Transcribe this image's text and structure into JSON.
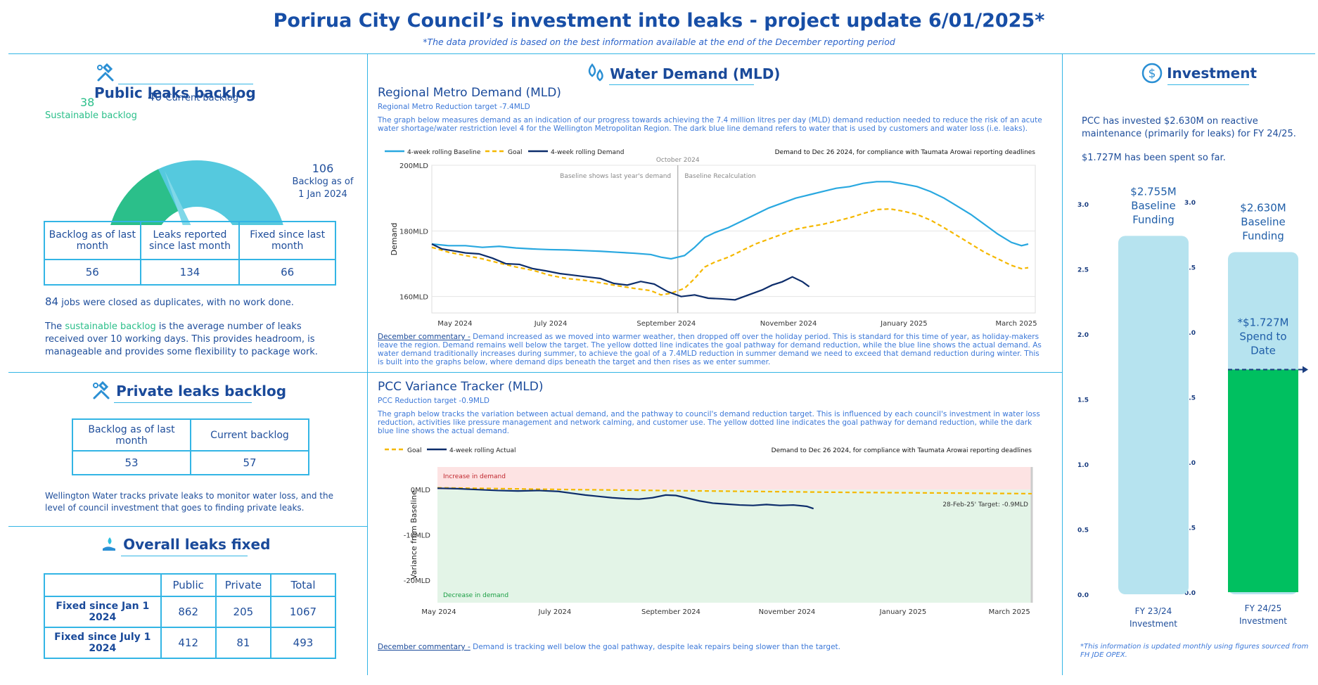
{
  "header": {
    "title": "Porirua City Council’s investment into leaks - project update 6/01/2025*",
    "subtitle": "*The data provided is based on the best information available at the end of the December reporting period"
  },
  "public_backlog": {
    "title": "Public leaks backlog",
    "gauge_sustainable_value": "38",
    "gauge_sustainable_label": "Sustainable backlog",
    "gauge_current_value": "40",
    "gauge_current_label": "Current backlog",
    "gauge_max_value": "106",
    "gauge_max_label_1": "Backlog as of",
    "gauge_max_label_2": "1 Jan 2024",
    "gauge_values": {
      "sustainable": 38,
      "current": 40,
      "max": 106
    },
    "table_headers": [
      "Backlog as of last month",
      "Leaks reported since last month",
      "Fixed since last month"
    ],
    "table_values": [
      "56",
      "134",
      "66"
    ],
    "duplicates_count": "84",
    "duplicates_text": "jobs were closed as duplicates, with no work done.",
    "note_prefix": "The",
    "note_highlight": "sustainable backlog",
    "note_rest": "is the average number of leaks received over 10 working days. This provides headroom, is manageable and provides some flexibility to package work."
  },
  "private_backlog": {
    "title": "Private leaks backlog",
    "table_headers": [
      "Backlog as of last month",
      "Current backlog"
    ],
    "table_values": [
      "53",
      "57"
    ],
    "note": "Wellington Water tracks private leaks to monitor water loss, and the level of council investment that goes to finding private leaks."
  },
  "overall_fixed": {
    "title": "Overall leaks fixed",
    "headers": [
      "Public",
      "Private",
      "Total"
    ],
    "rows": [
      {
        "label": "Fixed since Jan 1 2024",
        "values": [
          "862",
          "205",
          "1067"
        ]
      },
      {
        "label": "Fixed since July 1 2024",
        "values": [
          "412",
          "81",
          "493"
        ]
      }
    ]
  },
  "water_demand": {
    "title": "Water Demand (MLD)",
    "regional_title": "Regional Metro Demand (MLD)",
    "regional_sub": "Regional Metro Reduction target -7.4MLD",
    "regional_desc": "The graph below measures demand as an indication of our progress towards achieving the 7.4 million litres per day (MLD) demand reduction needed to reduce the risk of an acute water shortage/water restriction level 4 for the Wellington Metropolitan Region. The dark blue line demand refers to water that is used by customers and water loss (i.e. leaks).",
    "commentary_label": "December commentary -",
    "commentary_text": "Demand increased as we moved into warmer weather, then dropped off over the holiday period. This is standard for this time of year, as holiday-makers leave the region. Demand remains well below the target. The yellow dotted line indicates the goal pathway for demand reduction, while the blue line shows the actual demand. As water demand traditionally increases during summer, to achieve the goal of a 7.4MLD reduction in summer demand we need to exceed that demand reduction during winter. This is built into the graphs below, where demand dips beneath the target and then rises as we enter summer.",
    "pcc_title": "PCC Variance Tracker (MLD)",
    "pcc_sub": "PCC Reduction target -0.9MLD",
    "pcc_desc": "The graph below tracks the variation between actual demand, and the pathway to council's demand reduction target. This is influenced by each council's investment in water loss reduction, activities like pressure management and network calming, and customer use. The yellow dotted line indicates the goal pathway for demand reduction, while the dark blue line shows the actual demand.",
    "pcc_commentary_label": "December commentary -",
    "pcc_commentary_text": "Demand is tracking well below the goal pathway, despite leak repairs being slower than the target."
  },
  "investment": {
    "title": "Investment",
    "text1": "PCC has invested $2.630M on reactive maintenance (primarily for leaks) for FY 24/25.",
    "text2": "$1.727M has been spent so far.",
    "footnote": "*This information is updated monthly using figures sourced from FH JDE OPEX."
  },
  "colors": {
    "brand_blue": "#174ea6",
    "accent": "#33b5e5",
    "baseline_line": "#29a8e0",
    "goal_line": "#f5b800",
    "demand_line": "#0d2d6b",
    "light_bar": "#b6e3ef",
    "green_bar": "#00c060",
    "sustainable_green": "#2bbf8a",
    "gauge_blue": "#55c9de"
  },
  "icons": [
    "wrench-pipe-icon",
    "water-drops-icon",
    "dollar-circle-icon",
    "wrench-pipe-icon",
    "hand-water-icon"
  ],
  "chart_data": [
    {
      "type": "line",
      "title": "Regional Metro Demand (MLD)",
      "annotation_top": "Demand to Dec 26 2024, for compliance with Taumata Arowai reporting deadlines",
      "annotation_october": "October 2024",
      "annotation_left": "Baseline shows last year's demand",
      "annotation_right": "Baseline Recalculation",
      "ylabel": "Demand",
      "xlabel": "",
      "x_ticks": [
        "May 2024",
        "July 2024",
        "September 2024",
        "November 2024",
        "January 2025",
        "March 2025"
      ],
      "y_ticks": [
        "160MLD",
        "180MLD",
        "200MLD"
      ],
      "ylim": [
        155,
        200
      ],
      "legend": [
        "4-week rolling Baseline",
        "Goal",
        "4-week rolling Demand"
      ],
      "series": [
        {
          "name": "4-week rolling Baseline",
          "color": "#29a8e0",
          "dash": "none",
          "points": [
            [
              0,
              176
            ],
            [
              5,
              175.5
            ],
            [
              10,
              175.5
            ],
            [
              15,
              175
            ],
            [
              20,
              175.3
            ],
            [
              25,
              174.8
            ],
            [
              30,
              174.5
            ],
            [
              35,
              174.3
            ],
            [
              40,
              174.2
            ],
            [
              45,
              174
            ],
            [
              50,
              173.8
            ],
            [
              55,
              173.5
            ],
            [
              60,
              173.2
            ],
            [
              65,
              172.8
            ],
            [
              68,
              172
            ],
            [
              71,
              171.5
            ],
            [
              75,
              172.5
            ],
            [
              78,
              175
            ],
            [
              81,
              178
            ],
            [
              84,
              179.5
            ],
            [
              88,
              181
            ],
            [
              92,
              183
            ],
            [
              96,
              185
            ],
            [
              100,
              187
            ],
            [
              104,
              188.5
            ],
            [
              108,
              190
            ],
            [
              112,
              191
            ],
            [
              116,
              192
            ],
            [
              120,
              193
            ],
            [
              124,
              193.5
            ],
            [
              128,
              194.5
            ],
            [
              132,
              195
            ],
            [
              136,
              195
            ],
            [
              140,
              194.3
            ],
            [
              144,
              193.5
            ],
            [
              148,
              192
            ],
            [
              152,
              190
            ],
            [
              156,
              187.5
            ],
            [
              160,
              185
            ],
            [
              164,
              182
            ],
            [
              168,
              179
            ],
            [
              172,
              176.5
            ],
            [
              175,
              175.5
            ],
            [
              177,
              176
            ]
          ]
        },
        {
          "name": "Goal",
          "color": "#f5b800",
          "dash": "6,4",
          "points": [
            [
              0,
              175
            ],
            [
              5,
              173.5
            ],
            [
              10,
              172.5
            ],
            [
              15,
              171.5
            ],
            [
              20,
              170.2
            ],
            [
              25,
              169
            ],
            [
              30,
              168
            ],
            [
              35,
              166.5
            ],
            [
              40,
              165.5
            ],
            [
              45,
              165
            ],
            [
              50,
              164.2
            ],
            [
              55,
              163.3
            ],
            [
              60,
              162.5
            ],
            [
              65,
              161.8
            ],
            [
              68,
              160.5
            ],
            [
              71,
              161
            ],
            [
              75,
              162.5
            ],
            [
              78,
              165.5
            ],
            [
              81,
              169
            ],
            [
              84,
              170.5
            ],
            [
              88,
              172
            ],
            [
              92,
              174
            ],
            [
              96,
              176
            ],
            [
              100,
              177.5
            ],
            [
              104,
              179
            ],
            [
              108,
              180.5
            ],
            [
              112,
              181.3
            ],
            [
              116,
              182
            ],
            [
              120,
              183
            ],
            [
              124,
              184
            ],
            [
              128,
              185.3
            ],
            [
              132,
              186.5
            ],
            [
              136,
              186.7
            ],
            [
              140,
              186
            ],
            [
              144,
              185
            ],
            [
              148,
              183.3
            ],
            [
              152,
              181
            ],
            [
              156,
              178.5
            ],
            [
              160,
              176
            ],
            [
              164,
              173.5
            ],
            [
              168,
              171.5
            ],
            [
              172,
              169.5
            ],
            [
              175,
              168.5
            ],
            [
              177,
              168.8
            ]
          ]
        },
        {
          "name": "4-week rolling Demand",
          "color": "#0d2d6b",
          "dash": "none",
          "points": [
            [
              0,
              176
            ],
            [
              3,
              174.5
            ],
            [
              6,
              174
            ],
            [
              10,
              173.3
            ],
            [
              14,
              173
            ],
            [
              18,
              171.7
            ],
            [
              22,
              170
            ],
            [
              26,
              169.8
            ],
            [
              30,
              168.5
            ],
            [
              34,
              167.8
            ],
            [
              38,
              167
            ],
            [
              42,
              166.5
            ],
            [
              46,
              166
            ],
            [
              50,
              165.5
            ],
            [
              54,
              164
            ],
            [
              58,
              163.5
            ],
            [
              62,
              164.6
            ],
            [
              66,
              163.8
            ],
            [
              70,
              161.5
            ],
            [
              74,
              160
            ],
            [
              78,
              160.5
            ],
            [
              82,
              159.5
            ],
            [
              86,
              159.3
            ],
            [
              90,
              159
            ],
            [
              94,
              160.5
            ],
            [
              98,
              162
            ],
            [
              101,
              163.5
            ],
            [
              104,
              164.5
            ],
            [
              107,
              166
            ],
            [
              110,
              164.5
            ],
            [
              112,
              163
            ]
          ]
        }
      ]
    },
    {
      "type": "line",
      "title": "PCC Variance Tracker (MLD)",
      "annotation_top": "Demand to Dec 26 2024, for compliance with Taumata Arowai reporting deadlines",
      "annotation_target": "28-Feb-25' Target: -0.9MLD",
      "band_upper_label": "Increase in demand",
      "band_lower_label": "Decrease in demand",
      "ylabel": "Variance from Baseline",
      "xlabel": "",
      "x_ticks": [
        "May 2024",
        "July 2024",
        "September 2024",
        "November 2024",
        "January 2025",
        "March 2025"
      ],
      "y_ticks": [
        "0MLD",
        "-10MLD",
        "-20MLD"
      ],
      "ylim": [
        -25,
        5
      ],
      "legend": [
        "Goal",
        "4-week rolling Actual"
      ],
      "series": [
        {
          "name": "Goal",
          "color": "#f5b800",
          "dash": "6,4",
          "points": [
            [
              0,
              0.4
            ],
            [
              20,
              0.2
            ],
            [
              40,
              0
            ],
            [
              60,
              -0.15
            ],
            [
              80,
              -0.3
            ],
            [
              100,
              -0.45
            ],
            [
              120,
              -0.6
            ],
            [
              140,
              -0.7
            ],
            [
              160,
              -0.8
            ],
            [
              177,
              -0.9
            ]
          ]
        },
        {
          "name": "4-week rolling Actual",
          "color": "#0d2d6b",
          "dash": "none",
          "points": [
            [
              0,
              0.3
            ],
            [
              6,
              0.2
            ],
            [
              12,
              0
            ],
            [
              18,
              -0.2
            ],
            [
              24,
              -0.3
            ],
            [
              30,
              -0.2
            ],
            [
              36,
              -0.4
            ],
            [
              40,
              -0.8
            ],
            [
              44,
              -1.2
            ],
            [
              48,
              -1.5
            ],
            [
              52,
              -1.8
            ],
            [
              56,
              -2
            ],
            [
              60,
              -2.1
            ],
            [
              64,
              -1.8
            ],
            [
              68,
              -1.2
            ],
            [
              71,
              -1.3
            ],
            [
              74,
              -1.8
            ],
            [
              78,
              -2.5
            ],
            [
              82,
              -3
            ],
            [
              86,
              -3.2
            ],
            [
              90,
              -3.4
            ],
            [
              94,
              -3.5
            ],
            [
              98,
              -3.3
            ],
            [
              102,
              -3.5
            ],
            [
              106,
              -3.4
            ],
            [
              110,
              -3.7
            ],
            [
              112,
              -4.2
            ]
          ]
        }
      ]
    },
    {
      "type": "bar",
      "title": "FY 23/24 Investment",
      "categories": [
        "FY 23/24 Investment"
      ],
      "bar_label": "$2.755M Baseline Funding",
      "bar_label_lines": [
        "$2.755M",
        "Baseline",
        "Funding"
      ],
      "values": [
        2.755
      ],
      "y_ticks": [
        "0.0",
        "0.5",
        "1.0",
        "1.5",
        "2.0",
        "2.5",
        "3.0"
      ],
      "ylim": [
        0,
        3
      ],
      "xlabel_lines": [
        "FY 23/24",
        "Investment"
      ]
    },
    {
      "type": "bar",
      "title": "FY 24/25 Investment",
      "categories": [
        "FY 24/25 Investment"
      ],
      "bar_label_lines": [
        "$2.630M",
        "Baseline",
        "Funding"
      ],
      "spend_label_lines": [
        "*$1.727M",
        "Spend to",
        "Date"
      ],
      "series": [
        {
          "name": "Baseline Funding",
          "values": [
            2.63
          ]
        },
        {
          "name": "Spend to Date",
          "values": [
            1.727
          ]
        }
      ],
      "y_ticks": [
        "0.0",
        "0.5",
        "1.0",
        "1.5",
        "2.0",
        "2.5",
        "3.0"
      ],
      "ylim": [
        0,
        3
      ],
      "xlabel_lines": [
        "FY 24/25",
        "Investment"
      ]
    }
  ]
}
